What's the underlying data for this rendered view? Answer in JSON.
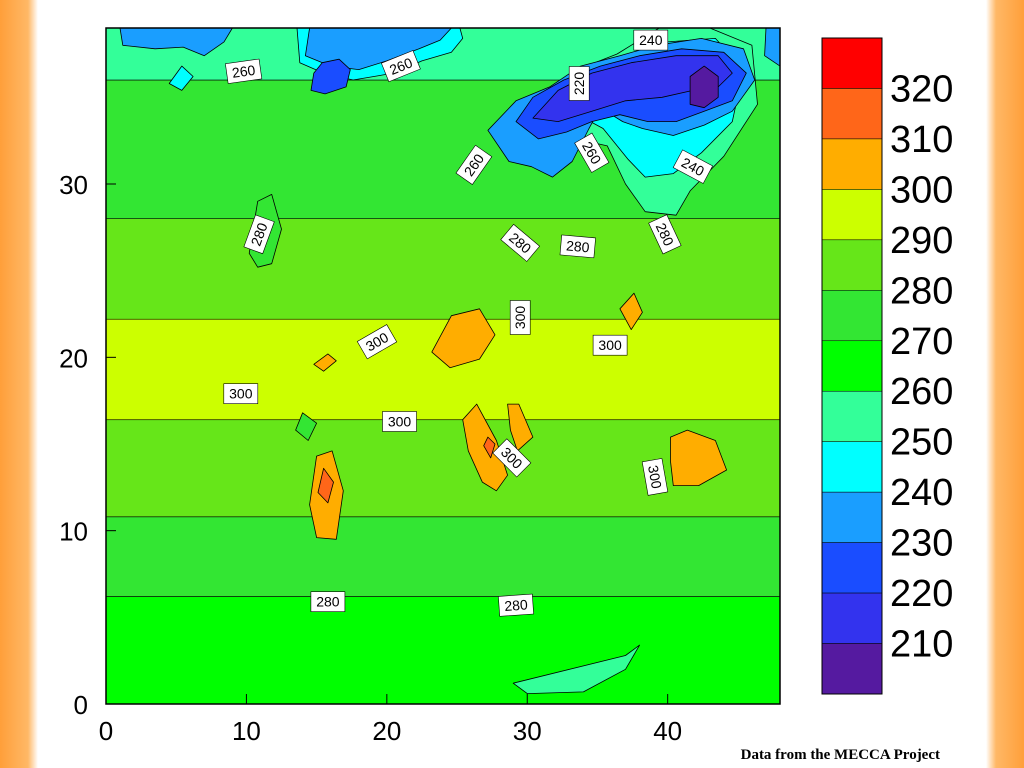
{
  "chart_data": {
    "type": "heatmap",
    "subtype": "filled-contour",
    "title": "",
    "xlabel": "",
    "ylabel": "",
    "xlim": [
      0,
      48
    ],
    "ylim": [
      0,
      39
    ],
    "xticks": [
      0,
      10,
      20,
      30,
      40
    ],
    "yticks": [
      0,
      10,
      20,
      30
    ],
    "grid": false,
    "colorbar": {
      "placement": "right",
      "levels": [
        320,
        310,
        300,
        290,
        280,
        270,
        260,
        250,
        240,
        230,
        220,
        210
      ],
      "colors": [
        "#ff0000",
        "#ff6619",
        "#ffad00",
        "#ccff00",
        "#66e619",
        "#33e633",
        "#00ff00",
        "#33ff99",
        "#00ffff",
        "#1a9eff",
        "#1a4dff",
        "#3333ee",
        "#551aa0"
      ]
    },
    "bands": [
      {
        "level": 270,
        "y_from": 0,
        "y_to": 6.2
      },
      {
        "level": 280,
        "y_from": 6.2,
        "y_to": 10.8
      },
      {
        "level": 290,
        "y_from": 10.8,
        "y_to": 16.4
      },
      {
        "level": 300,
        "y_from": 16.4,
        "y_to": 22.2
      },
      {
        "level": 290,
        "y_from": 22.2,
        "y_to": 28
      },
      {
        "level": 280,
        "y_from": 28,
        "y_to": 36
      },
      {
        "level": 260,
        "y_from": 36,
        "y_to": 39
      }
    ],
    "features": [
      {
        "level": 260,
        "points": [
          [
            29,
            1.2
          ],
          [
            37,
            2.8
          ],
          [
            38,
            3.4
          ],
          [
            37,
            2
          ],
          [
            34,
            0.7
          ],
          [
            30,
            0.6
          ]
        ]
      },
      {
        "level": 310,
        "points": [
          [
            14.5,
            11.5
          ],
          [
            15,
            14.3
          ],
          [
            16.1,
            14.6
          ],
          [
            16.9,
            12.3
          ],
          [
            16.4,
            9.5
          ],
          [
            15,
            9.6
          ]
        ]
      },
      {
        "level": 320,
        "points": [
          [
            15.1,
            12.2
          ],
          [
            15.5,
            13.6
          ],
          [
            16.2,
            12.8
          ],
          [
            15.8,
            11.6
          ]
        ]
      },
      {
        "level": 310,
        "points": [
          [
            25.4,
            16.4
          ],
          [
            26.4,
            17.3
          ],
          [
            27.8,
            15.2
          ],
          [
            28.6,
            13.2
          ],
          [
            27.8,
            12.3
          ],
          [
            26.8,
            12.8
          ],
          [
            25.8,
            14.6
          ]
        ]
      },
      {
        "level": 310,
        "points": [
          [
            28.6,
            17.3
          ],
          [
            29.4,
            17.3
          ],
          [
            30.4,
            15.4
          ],
          [
            29.3,
            14.6
          ],
          [
            28.8,
            15.8
          ]
        ]
      },
      {
        "level": 320,
        "points": [
          [
            26.9,
            14.9
          ],
          [
            27.2,
            15.4
          ],
          [
            27.7,
            15
          ],
          [
            27.4,
            14.2
          ]
        ]
      },
      {
        "level": 310,
        "points": [
          [
            40.2,
            15.4
          ],
          [
            41.4,
            15.8
          ],
          [
            43.4,
            15.2
          ],
          [
            44.2,
            13.5
          ],
          [
            42.2,
            12.6
          ],
          [
            40.4,
            12.6
          ],
          [
            40.2,
            14
          ]
        ]
      },
      {
        "level": 310,
        "points": [
          [
            23.2,
            20.3
          ],
          [
            24.6,
            22.4
          ],
          [
            26.6,
            22.8
          ],
          [
            27.7,
            21.3
          ],
          [
            26.6,
            19.9
          ],
          [
            24.5,
            19.4
          ]
        ]
      },
      {
        "level": 310,
        "points": [
          [
            14.8,
            19.6
          ],
          [
            15.8,
            20.2
          ],
          [
            16.4,
            19.8
          ],
          [
            15.5,
            19.2
          ]
        ]
      },
      {
        "level": 310,
        "points": [
          [
            36.6,
            22.8
          ],
          [
            37.6,
            23.7
          ],
          [
            38.2,
            22.6
          ],
          [
            37.4,
            21.6
          ]
        ]
      },
      {
        "level": 280,
        "points": [
          [
            13.5,
            15.8
          ],
          [
            14,
            16.8
          ],
          [
            15,
            16.2
          ],
          [
            14.4,
            15.2
          ]
        ]
      },
      {
        "level": 280,
        "points": [
          [
            10.2,
            26
          ],
          [
            10.8,
            29
          ],
          [
            11.8,
            29.4
          ],
          [
            12.5,
            27.4
          ],
          [
            11.8,
            25.4
          ],
          [
            10.8,
            25.2
          ]
        ]
      },
      {
        "level": 260,
        "points": [
          [
            32.4,
            33.7
          ],
          [
            33.5,
            32.6
          ],
          [
            35.7,
            32.2
          ],
          [
            37,
            30
          ],
          [
            38.4,
            28.4
          ],
          [
            40.6,
            28.2
          ],
          [
            41.6,
            29.6
          ],
          [
            44,
            31.6
          ],
          [
            46.4,
            34.6
          ],
          [
            46,
            38
          ],
          [
            43,
            39
          ],
          [
            39.4,
            39
          ],
          [
            36.4,
            37.5
          ],
          [
            34.2,
            36.8
          ],
          [
            32,
            35.6
          ]
        ]
      },
      {
        "level": 250,
        "points": [
          [
            34.5,
            33.6
          ],
          [
            35.4,
            33.2
          ],
          [
            37.2,
            31.4
          ],
          [
            38.4,
            30.4
          ],
          [
            40.4,
            30.6
          ],
          [
            42.4,
            31.8
          ],
          [
            44.6,
            33.6
          ],
          [
            45.4,
            36.6
          ],
          [
            43.4,
            38.4
          ],
          [
            40,
            38.2
          ],
          [
            37.2,
            37.2
          ],
          [
            35.2,
            36.2
          ]
        ]
      },
      {
        "level": 240,
        "points": [
          [
            27.2,
            33.1
          ],
          [
            28.7,
            31.3
          ],
          [
            30.3,
            31
          ],
          [
            31.8,
            30.4
          ],
          [
            33.2,
            31.3
          ],
          [
            34.4,
            33.2
          ],
          [
            35.2,
            34.4
          ],
          [
            36.8,
            33.6
          ],
          [
            38.2,
            33.2
          ],
          [
            40.4,
            32.8
          ],
          [
            42.6,
            33.4
          ],
          [
            44.6,
            34.2
          ],
          [
            46.2,
            36
          ],
          [
            45.4,
            37.8
          ],
          [
            42.4,
            38.4
          ],
          [
            39.2,
            38
          ],
          [
            36.6,
            37.4
          ],
          [
            33.8,
            36.8
          ],
          [
            31.6,
            35.6
          ],
          [
            29.2,
            34.8
          ]
        ]
      },
      {
        "level": 230,
        "points": [
          [
            29.2,
            33.6
          ],
          [
            30.8,
            32.6
          ],
          [
            32.8,
            33
          ],
          [
            34.6,
            33.6
          ],
          [
            36.6,
            34
          ],
          [
            38.6,
            33.6
          ],
          [
            40.6,
            33.6
          ],
          [
            42.6,
            34.2
          ],
          [
            44.6,
            34.8
          ],
          [
            45.6,
            36.4
          ],
          [
            44,
            37.6
          ],
          [
            41,
            37.8
          ],
          [
            38,
            37.4
          ],
          [
            35.2,
            36.8
          ],
          [
            32.6,
            36
          ],
          [
            30.4,
            35
          ]
        ]
      },
      {
        "level": 220,
        "points": [
          [
            30.4,
            33.8
          ],
          [
            32.2,
            33.6
          ],
          [
            34.6,
            34.2
          ],
          [
            37,
            34.8
          ],
          [
            39.6,
            35
          ],
          [
            41.8,
            35.4
          ],
          [
            43.6,
            35.6
          ],
          [
            44.6,
            36.4
          ],
          [
            43.6,
            37.4
          ],
          [
            40.6,
            37.4
          ],
          [
            37.4,
            37
          ],
          [
            34.6,
            36.4
          ],
          [
            32.2,
            35.4
          ]
        ]
      },
      {
        "level": 210,
        "points": [
          [
            41.6,
            34.6
          ],
          [
            42.6,
            34.4
          ],
          [
            43.6,
            35
          ],
          [
            43.6,
            36.2
          ],
          [
            42.6,
            36.8
          ],
          [
            41.6,
            36.2
          ]
        ]
      },
      {
        "level": 250,
        "points": [
          [
            13.8,
            37
          ],
          [
            15.5,
            36.4
          ],
          [
            17.6,
            36
          ],
          [
            20.5,
            36.4
          ],
          [
            22.5,
            37.1
          ],
          [
            24.6,
            37.6
          ],
          [
            25.4,
            38.4
          ],
          [
            25.2,
            39
          ],
          [
            13.6,
            39
          ]
        ]
      },
      {
        "level": 240,
        "points": [
          [
            14.2,
            37.4
          ],
          [
            16,
            36.8
          ],
          [
            18,
            36.6
          ],
          [
            20,
            37.1
          ],
          [
            22.3,
            37.8
          ],
          [
            23.8,
            38.3
          ],
          [
            24.6,
            39
          ],
          [
            14.5,
            39
          ]
        ]
      },
      {
        "level": 230,
        "points": [
          [
            14.6,
            35.4
          ],
          [
            15.6,
            35.2
          ],
          [
            17.1,
            35.6
          ],
          [
            17.4,
            36.6
          ],
          [
            16.6,
            37.2
          ],
          [
            15.4,
            37
          ],
          [
            14.8,
            36.4
          ]
        ]
      },
      {
        "level": 240,
        "points": [
          [
            1,
            39
          ],
          [
            1.2,
            38
          ],
          [
            3.5,
            37.8
          ],
          [
            5.5,
            37.9
          ],
          [
            7,
            37.4
          ],
          [
            8.4,
            38.2
          ],
          [
            9,
            39
          ]
        ]
      },
      {
        "level": 240,
        "points": [
          [
            47,
            39
          ],
          [
            46.9,
            37.4
          ],
          [
            48,
            36.8
          ],
          [
            48,
            39
          ]
        ]
      },
      {
        "level": 250,
        "points": [
          [
            4.5,
            35.8
          ],
          [
            5.4,
            35.4
          ],
          [
            6.2,
            36.2
          ],
          [
            5.4,
            36.8
          ]
        ]
      }
    ],
    "contour_labels": [
      {
        "text": "260",
        "x": 9.8,
        "y": 36.5,
        "angle": -8
      },
      {
        "text": "260",
        "x": 21,
        "y": 36.8,
        "angle": -22
      },
      {
        "text": "240",
        "x": 38.8,
        "y": 38.3,
        "angle": 0
      },
      {
        "text": "220",
        "x": 33.7,
        "y": 35.8,
        "angle": -90
      },
      {
        "text": "260",
        "x": 26.2,
        "y": 31.1,
        "angle": -55
      },
      {
        "text": "260",
        "x": 34.6,
        "y": 31.8,
        "angle": 60
      },
      {
        "text": "240",
        "x": 41.8,
        "y": 31,
        "angle": 28
      },
      {
        "text": "280",
        "x": 10.9,
        "y": 27.1,
        "angle": -70
      },
      {
        "text": "280",
        "x": 29.5,
        "y": 26.6,
        "angle": 40
      },
      {
        "text": "280",
        "x": 33.6,
        "y": 26.4,
        "angle": 5
      },
      {
        "text": "280",
        "x": 39.8,
        "y": 27.1,
        "angle": 65
      },
      {
        "text": "300",
        "x": 29.5,
        "y": 22.3,
        "angle": -90
      },
      {
        "text": "300",
        "x": 19.3,
        "y": 20.9,
        "angle": -30
      },
      {
        "text": "300",
        "x": 35.9,
        "y": 20.7,
        "angle": 0
      },
      {
        "text": "300",
        "x": 9.6,
        "y": 17.9,
        "angle": 0
      },
      {
        "text": "300",
        "x": 20.9,
        "y": 16.3,
        "angle": 0
      },
      {
        "text": "300",
        "x": 28.9,
        "y": 14.2,
        "angle": 45
      },
      {
        "text": "300",
        "x": 39.1,
        "y": 13.1,
        "angle": 80
      },
      {
        "text": "280",
        "x": 15.8,
        "y": 5.9,
        "angle": 0
      },
      {
        "text": "280",
        "x": 29.2,
        "y": 5.7,
        "angle": -4
      }
    ],
    "annotation": "Data from the MECCA Project"
  }
}
